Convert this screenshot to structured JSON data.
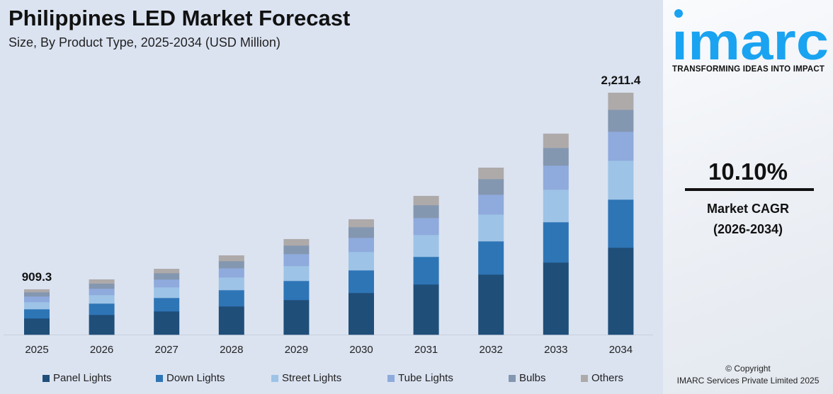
{
  "chart_data": {
    "type": "bar",
    "stacked": true,
    "title": "Philippines LED Market Forecast",
    "subtitle": "Size, By Product Type, 2025-2034 (USD Million)",
    "categories": [
      "2025",
      "2026",
      "2027",
      "2028",
      "2029",
      "2030",
      "2031",
      "2032",
      "2033",
      "2034"
    ],
    "series": [
      {
        "name": "Panel Lights",
        "color": "#1f4e79",
        "values": [
          326.8,
          350,
          370.8,
          405,
          450.8,
          496.9,
          553.5,
          617.7,
          696.8,
          795.3
        ]
      },
      {
        "name": "Down Lights",
        "color": "#2e75b6",
        "values": [
          184.7,
          200,
          213.5,
          232.9,
          248.4,
          269.5,
          304,
          341.5,
          389.4,
          439.7
        ]
      },
      {
        "name": "Street Lights",
        "color": "#9dc3e6",
        "values": [
          142.1,
          150,
          168.6,
          182.3,
          193.2,
          219,
          241.7,
          276.1,
          314.2,
          355.6
        ]
      },
      {
        "name": "Tube Lights",
        "color": "#8faadc",
        "values": [
          113.7,
          112.5,
          123.6,
          131.6,
          156.4,
          168.5,
          187.1,
          203.5,
          232.3,
          265.1
        ]
      },
      {
        "name": "Bulbs",
        "color": "#8497b0",
        "values": [
          85.2,
          91.2,
          101.1,
          101.3,
          110.4,
          126.3,
          140.3,
          159.9,
          170.8,
          200.4
        ]
      },
      {
        "name": "Others",
        "color": "#aeaaaa",
        "values": [
          56.8,
          71.3,
          67.4,
          81,
          82.8,
          92.7,
          101.3,
          116.3,
          136.6,
          155.2
        ]
      }
    ],
    "data_labels": {
      "2025": "909.3",
      "2034": "2,211.4"
    },
    "legend_position": "bottom",
    "grid": false
  },
  "brand": {
    "name": "imarc",
    "tagline": "TRANSFORMING IDEAS INTO IMPACT",
    "color": "#1aa3f0"
  },
  "side": {
    "cagr": "10.10%",
    "cagr_label": "Market CAGR",
    "cagr_period": "(2026-2034)",
    "copyright": "© Copyright",
    "company": "IMARC Services Private Limited 2025"
  }
}
